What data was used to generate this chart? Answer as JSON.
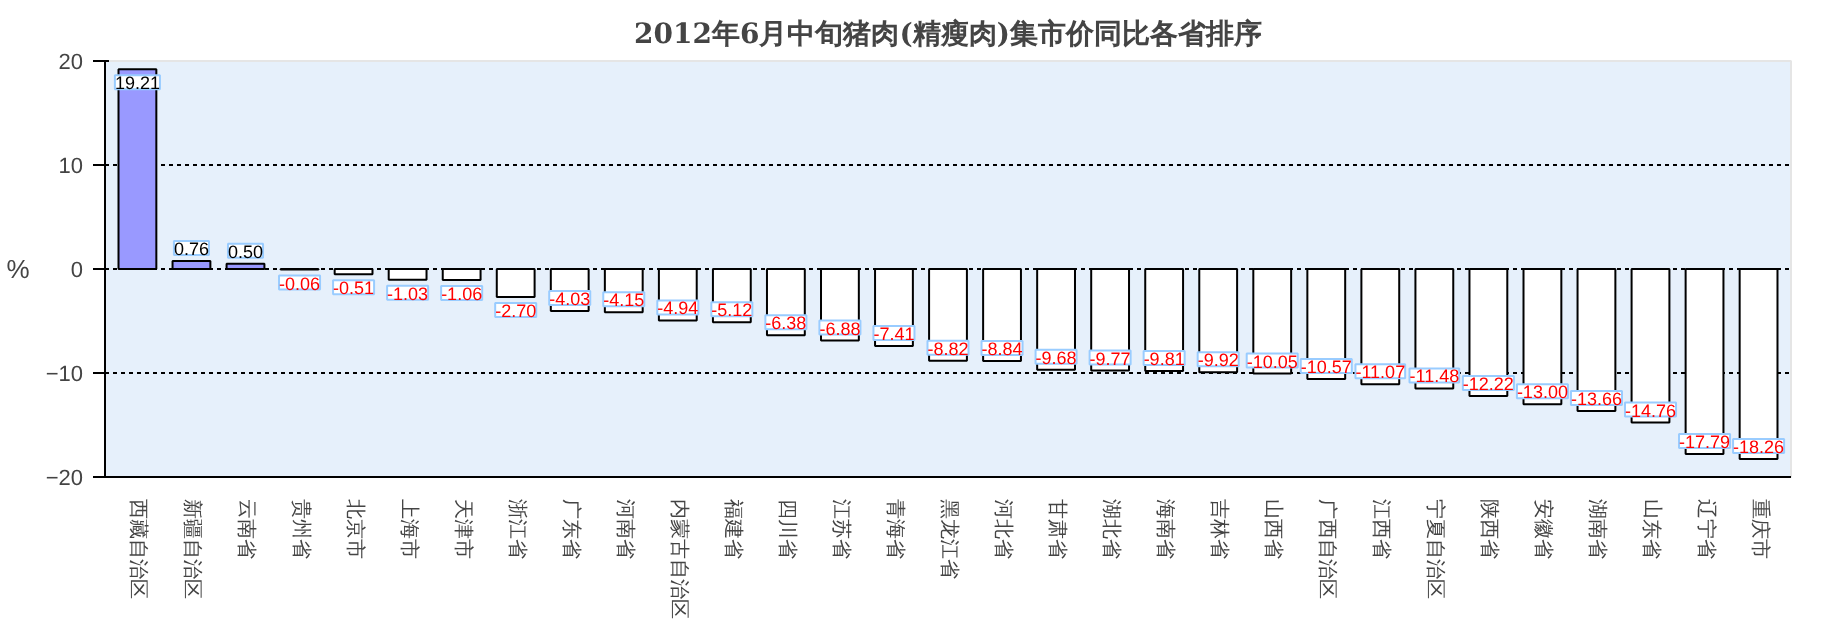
{
  "chart_data": {
    "type": "bar",
    "title": "2012年6月中旬猪肉(精瘦肉)集市价同比各省排序",
    "ylabel": "%",
    "categories": [
      "西藏自治区",
      "新疆自治区",
      "云南省",
      "贵州省",
      "北京市",
      "上海市",
      "天津市",
      "浙江省",
      "广东省",
      "河南省",
      "内蒙古自治区",
      "福建省",
      "四川省",
      "江苏省",
      "青海省",
      "黑龙江省",
      "河北省",
      "甘肃省",
      "湖北省",
      "海南省",
      "吉林省",
      "山西省",
      "广西自治区",
      "江西省",
      "宁夏自治区",
      "陕西省",
      "安徽省",
      "湖南省",
      "山东省",
      "辽宁省",
      "重庆市"
    ],
    "values": [
      19.21,
      0.76,
      0.5,
      -0.06,
      -0.51,
      -1.03,
      -1.06,
      -2.7,
      -4.03,
      -4.15,
      -4.94,
      -5.12,
      -6.38,
      -6.88,
      -7.41,
      -8.82,
      -8.84,
      -9.68,
      -9.77,
      -9.81,
      -9.92,
      -10.05,
      -10.57,
      -11.07,
      -11.48,
      -12.22,
      -13.0,
      -13.66,
      -14.76,
      -17.79,
      -18.26
    ],
    "colors": [
      "#9999ff",
      "#9999ff",
      "#9999ff",
      "#ffffff",
      "#ffffff",
      "#ffffff",
      "#ffffff",
      "#ffffff",
      "#ffffff",
      "#ffffff",
      "#ffffff",
      "#ffffff",
      "#ffffff",
      "#ffffff",
      "#ffffff",
      "#ffffff",
      "#ffffff",
      "#ffffff",
      "#ffffff",
      "#ffffff",
      "#ffffff",
      "#ffffff",
      "#ffffff",
      "#ffffff",
      "#ffffff",
      "#ffffff",
      "#ffffff",
      "#ffffff",
      "#ffffff",
      "#ffffff",
      "#ffffff"
    ],
    "value_labels": [
      "19.21",
      "0.76",
      "0.50",
      "-0.06",
      "-0.51",
      "-1.03",
      "-1.06",
      "-2.70",
      "-4.03",
      "-4.15",
      "-4.94",
      "-5.12",
      "-6.38",
      "-6.88",
      "-7.41",
      "-8.82",
      "-8.84",
      "-9.68",
      "-9.77",
      "-9.81",
      "-9.92",
      "-10.05",
      "-10.57",
      "-11.07",
      "-11.48",
      "-12.22",
      "-13.00",
      "-13.66",
      "-14.76",
      "-17.79",
      "-18.26"
    ],
    "ylim": [
      -20,
      20
    ],
    "yticks": [
      -20,
      -10,
      0,
      10,
      20
    ],
    "grid": "y"
  }
}
